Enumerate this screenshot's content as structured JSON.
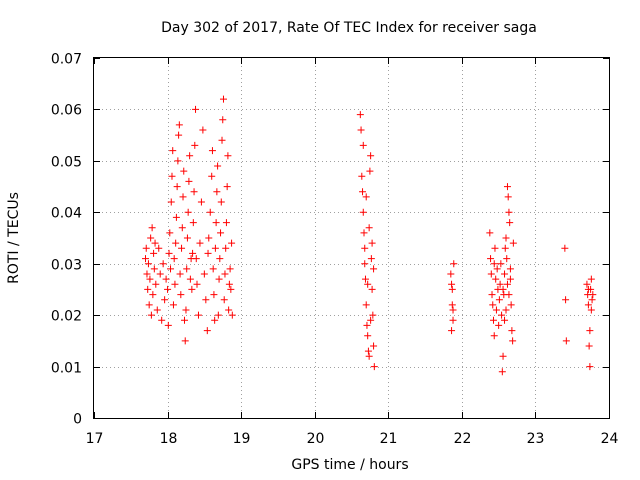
{
  "chart_data": {
    "type": "scatter",
    "title": "Day 302 of 2017, Rate Of TEC Index for receiver saga",
    "xlabel": "GPS time / hours",
    "ylabel": "ROTI / TECUs",
    "xlim": [
      17,
      24
    ],
    "ylim": [
      0,
      0.07
    ],
    "xticks": [
      "17",
      "18",
      "19",
      "20",
      "21",
      "22",
      "23",
      "24"
    ],
    "yticks": [
      "0",
      "0.01",
      "0.02",
      "0.03",
      "0.04",
      "0.05",
      "0.06",
      "0.07"
    ],
    "grid": true,
    "marker": "+",
    "color": "#ff0000",
    "series": [
      {
        "name": "ROTI",
        "points": [
          [
            17.7,
            0.031
          ],
          [
            17.71,
            0.033
          ],
          [
            17.72,
            0.028
          ],
          [
            17.73,
            0.025
          ],
          [
            17.74,
            0.03
          ],
          [
            17.75,
            0.022
          ],
          [
            17.76,
            0.027
          ],
          [
            17.77,
            0.035
          ],
          [
            17.78,
            0.02
          ],
          [
            17.79,
            0.037
          ],
          [
            17.8,
            0.024
          ],
          [
            17.81,
            0.032
          ],
          [
            17.82,
            0.029
          ],
          [
            17.83,
            0.034
          ],
          [
            17.84,
            0.026
          ],
          [
            17.86,
            0.021
          ],
          [
            17.88,
            0.033
          ],
          [
            17.9,
            0.028
          ],
          [
            17.92,
            0.019
          ],
          [
            17.94,
            0.03
          ],
          [
            17.96,
            0.023
          ],
          [
            17.98,
            0.027
          ],
          [
            18.0,
            0.025
          ],
          [
            18.01,
            0.018
          ],
          [
            18.02,
            0.032
          ],
          [
            18.03,
            0.036
          ],
          [
            18.04,
            0.029
          ],
          [
            18.05,
            0.042
          ],
          [
            18.06,
            0.047
          ],
          [
            18.07,
            0.052
          ],
          [
            18.08,
            0.022
          ],
          [
            18.09,
            0.031
          ],
          [
            18.1,
            0.026
          ],
          [
            18.11,
            0.034
          ],
          [
            18.12,
            0.039
          ],
          [
            18.13,
            0.045
          ],
          [
            18.14,
            0.05
          ],
          [
            18.15,
            0.055
          ],
          [
            18.16,
            0.057
          ],
          [
            18.17,
            0.028
          ],
          [
            18.18,
            0.024
          ],
          [
            18.19,
            0.033
          ],
          [
            18.2,
            0.037
          ],
          [
            18.21,
            0.043
          ],
          [
            18.22,
            0.048
          ],
          [
            18.23,
            0.019
          ],
          [
            18.24,
            0.015
          ],
          [
            18.25,
            0.021
          ],
          [
            18.26,
            0.029
          ],
          [
            18.27,
            0.035
          ],
          [
            18.28,
            0.04
          ],
          [
            18.29,
            0.046
          ],
          [
            18.3,
            0.051
          ],
          [
            18.31,
            0.027
          ],
          [
            18.32,
            0.031
          ],
          [
            18.33,
            0.025
          ],
          [
            18.34,
            0.032
          ],
          [
            18.35,
            0.038
          ],
          [
            18.36,
            0.044
          ],
          [
            18.37,
            0.053
          ],
          [
            18.38,
            0.06
          ],
          [
            18.39,
            0.031
          ],
          [
            18.4,
            0.026
          ],
          [
            18.42,
            0.02
          ],
          [
            18.44,
            0.034
          ],
          [
            18.46,
            0.042
          ],
          [
            18.48,
            0.056
          ],
          [
            18.5,
            0.028
          ],
          [
            18.52,
            0.023
          ],
          [
            18.54,
            0.017
          ],
          [
            18.55,
            0.032
          ],
          [
            18.56,
            0.035
          ],
          [
            18.58,
            0.04
          ],
          [
            18.6,
            0.047
          ],
          [
            18.61,
            0.052
          ],
          [
            18.62,
            0.029
          ],
          [
            18.63,
            0.024
          ],
          [
            18.64,
            0.019
          ],
          [
            18.65,
            0.033
          ],
          [
            18.66,
            0.038
          ],
          [
            18.67,
            0.044
          ],
          [
            18.68,
            0.049
          ],
          [
            18.69,
            0.02
          ],
          [
            18.7,
            0.027
          ],
          [
            18.71,
            0.031
          ],
          [
            18.72,
            0.036
          ],
          [
            18.73,
            0.042
          ],
          [
            18.74,
            0.054
          ],
          [
            18.75,
            0.058
          ],
          [
            18.76,
            0.062
          ],
          [
            18.77,
            0.023
          ],
          [
            18.78,
            0.028
          ],
          [
            18.79,
            0.033
          ],
          [
            18.8,
            0.038
          ],
          [
            18.81,
            0.045
          ],
          [
            18.82,
            0.051
          ],
          [
            18.83,
            0.021
          ],
          [
            18.84,
            0.026
          ],
          [
            18.85,
            0.029
          ],
          [
            18.86,
            0.025
          ],
          [
            18.87,
            0.034
          ],
          [
            18.88,
            0.02
          ],
          [
            20.62,
            0.059
          ],
          [
            20.63,
            0.056
          ],
          [
            20.64,
            0.047
          ],
          [
            20.65,
            0.044
          ],
          [
            20.66,
            0.04
          ],
          [
            20.67,
            0.036
          ],
          [
            20.68,
            0.033
          ],
          [
            20.69,
            0.027
          ],
          [
            20.7,
            0.022
          ],
          [
            20.71,
            0.018
          ],
          [
            20.72,
            0.016
          ],
          [
            20.73,
            0.013
          ],
          [
            20.74,
            0.012
          ],
          [
            20.75,
            0.048
          ],
          [
            20.76,
            0.051
          ],
          [
            20.77,
            0.031
          ],
          [
            20.78,
            0.025
          ],
          [
            20.79,
            0.02
          ],
          [
            20.8,
            0.014
          ],
          [
            20.81,
            0.01
          ],
          [
            20.66,
            0.053
          ],
          [
            20.68,
            0.03
          ],
          [
            20.7,
            0.043
          ],
          [
            20.72,
            0.026
          ],
          [
            20.74,
            0.037
          ],
          [
            20.76,
            0.019
          ],
          [
            20.78,
            0.034
          ],
          [
            20.8,
            0.029
          ],
          [
            21.85,
            0.028
          ],
          [
            21.86,
            0.026
          ],
          [
            21.87,
            0.022
          ],
          [
            21.88,
            0.019
          ],
          [
            21.89,
            0.03
          ],
          [
            21.86,
            0.017
          ],
          [
            21.88,
            0.021
          ],
          [
            21.87,
            0.025
          ],
          [
            22.38,
            0.036
          ],
          [
            22.39,
            0.031
          ],
          [
            22.4,
            0.028
          ],
          [
            22.41,
            0.024
          ],
          [
            22.42,
            0.022
          ],
          [
            22.43,
            0.019
          ],
          [
            22.44,
            0.016
          ],
          [
            22.45,
            0.033
          ],
          [
            22.46,
            0.027
          ],
          [
            22.47,
            0.021
          ],
          [
            22.48,
            0.029
          ],
          [
            22.49,
            0.025
          ],
          [
            22.5,
            0.018
          ],
          [
            22.51,
            0.023
          ],
          [
            22.52,
            0.026
          ],
          [
            22.53,
            0.03
          ],
          [
            22.54,
            0.02
          ],
          [
            22.55,
            0.009
          ],
          [
            22.56,
            0.012
          ],
          [
            22.57,
            0.024
          ],
          [
            22.58,
            0.028
          ],
          [
            22.59,
            0.033
          ],
          [
            22.6,
            0.035
          ],
          [
            22.61,
            0.031
          ],
          [
            22.62,
            0.045
          ],
          [
            22.63,
            0.043
          ],
          [
            22.64,
            0.04
          ],
          [
            22.65,
            0.038
          ],
          [
            22.66,
            0.027
          ],
          [
            22.67,
            0.022
          ],
          [
            22.68,
            0.017
          ],
          [
            22.69,
            0.015
          ],
          [
            22.7,
            0.034
          ],
          [
            22.62,
            0.026
          ],
          [
            22.64,
            0.024
          ],
          [
            22.6,
            0.021
          ],
          [
            22.58,
            0.019
          ],
          [
            22.56,
            0.025
          ],
          [
            22.66,
            0.029
          ],
          [
            22.44,
            0.03
          ],
          [
            23.4,
            0.033
          ],
          [
            23.41,
            0.023
          ],
          [
            23.42,
            0.015
          ],
          [
            23.7,
            0.026
          ],
          [
            23.71,
            0.024
          ],
          [
            23.72,
            0.022
          ],
          [
            23.73,
            0.014
          ],
          [
            23.74,
            0.01
          ],
          [
            23.75,
            0.025
          ],
          [
            23.76,
            0.027
          ],
          [
            23.77,
            0.023
          ],
          [
            23.74,
            0.017
          ],
          [
            23.76,
            0.021
          ],
          [
            23.72,
            0.025
          ],
          [
            23.78,
            0.024
          ]
        ]
      }
    ]
  }
}
